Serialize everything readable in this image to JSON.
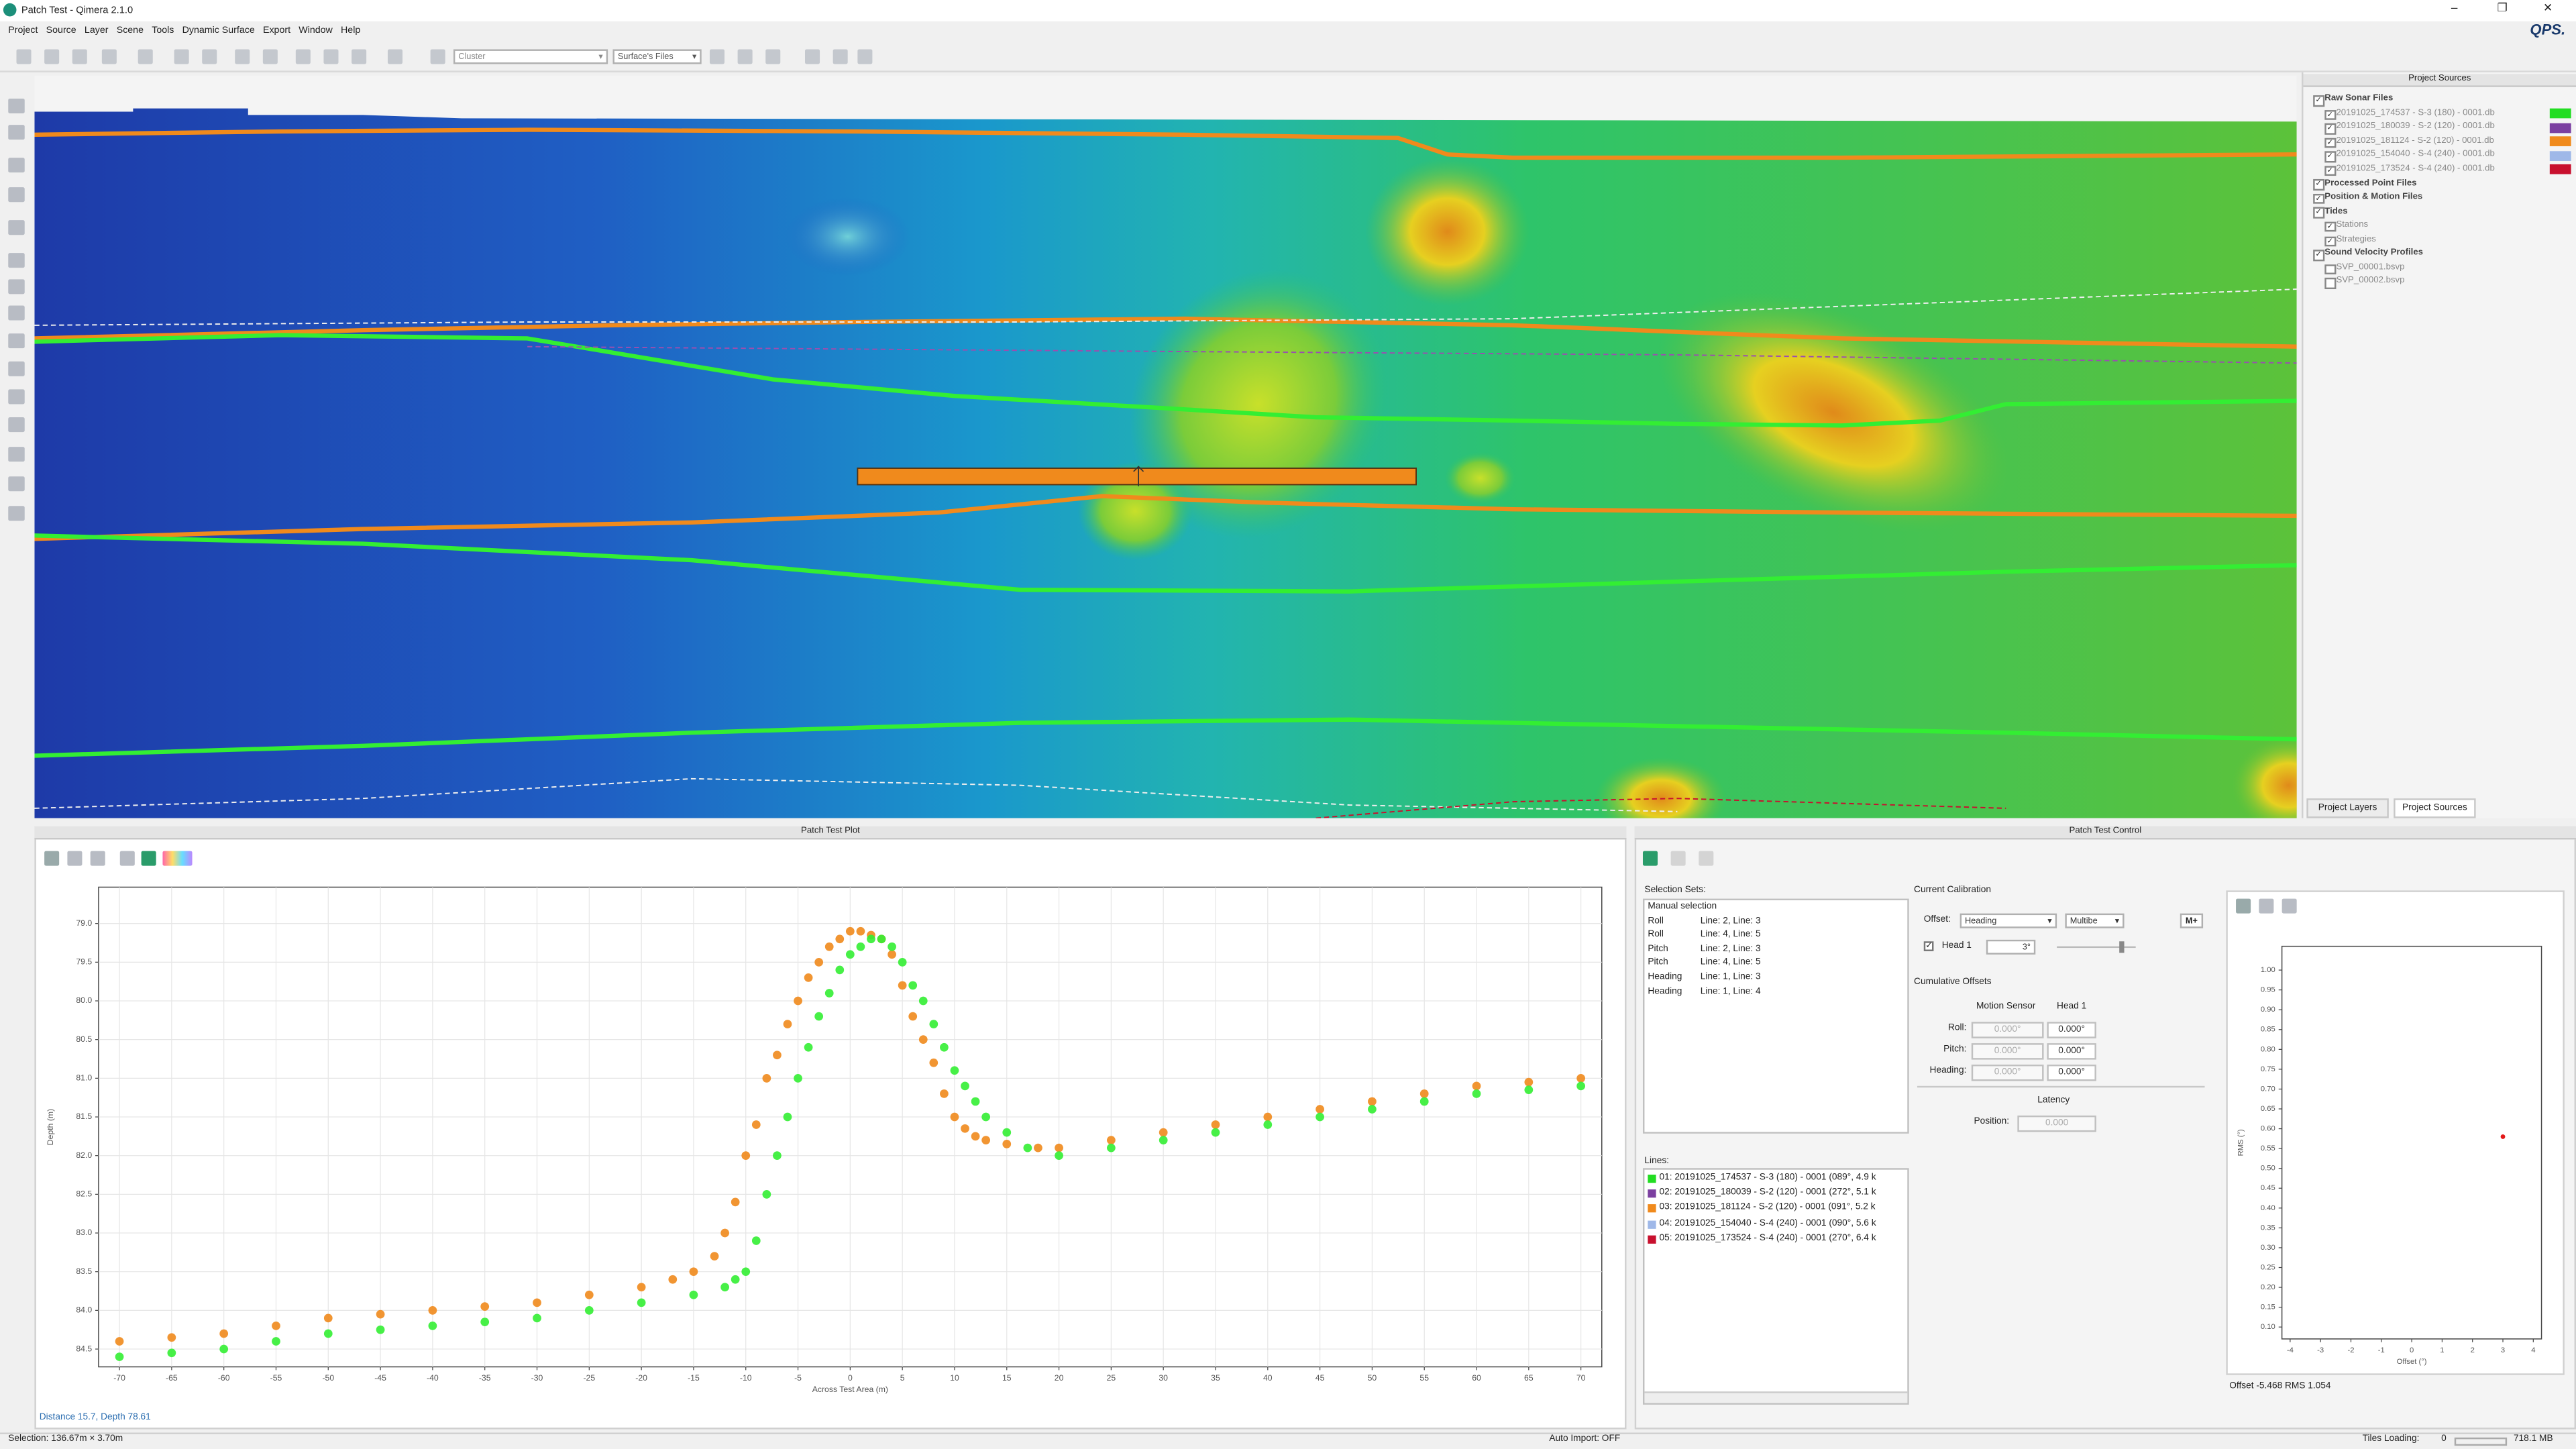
{
  "window": {
    "title": "Patch Test - Qimera 2.1.0",
    "logo": "QPS."
  },
  "menu": [
    "Project",
    "Source",
    "Layer",
    "Scene",
    "Tools",
    "Dynamic Surface",
    "Export",
    "Window",
    "Help"
  ],
  "toolbar": {
    "cluster": "Cluster",
    "surface_files": "Surface's Files"
  },
  "project_sources": {
    "title": "Project Sources",
    "tree": [
      {
        "label": "Raw Sonar Files",
        "children": [
          {
            "label": "20191025_174537 - S-3 (180) - 0001.db",
            "color": "#22dd22"
          },
          {
            "label": "20191025_180039 - S-2 (120) - 0001.db",
            "color": "#7b3fa0"
          },
          {
            "label": "20191025_181124 - S-2 (120) - 0001.db",
            "color": "#f08a1c"
          },
          {
            "label": "20191025_154040 - S-4 (240) - 0001.db",
            "color": "#9fb8e8"
          },
          {
            "label": "20191025_173524 - S-4 (240) - 0001.db",
            "color": "#c8102e"
          }
        ]
      },
      {
        "label": "Processed Point Files"
      },
      {
        "label": "Position & Motion Files"
      },
      {
        "label": "Tides",
        "children": [
          {
            "label": "Stations"
          },
          {
            "label": "Strategies"
          }
        ]
      },
      {
        "label": "Sound Velocity Profiles",
        "children": [
          {
            "label": "SVP_00001.bsvp"
          },
          {
            "label": "SVP_00002.bsvp"
          }
        ]
      }
    ]
  },
  "tabs": [
    "Project Layers",
    "Project Sources"
  ],
  "patch_test_plot": {
    "title": "Patch Test Plot",
    "type": "scatter",
    "x_label": "Across Test Area (m)",
    "y_label": "Depth (m)",
    "xlim": [
      -72,
      72
    ],
    "ylim": [
      78.53,
      84.73
    ],
    "y_inverted": true,
    "grid": true,
    "xticks": [
      -70,
      -65,
      -60,
      -55,
      -50,
      -45,
      -40,
      -35,
      -30,
      -25,
      -20,
      -15,
      -10,
      -5,
      0,
      5,
      10,
      15,
      20,
      25,
      30,
      35,
      40,
      45,
      50,
      55,
      60,
      65,
      70
    ],
    "yticks": [
      {
        "value": 79,
        "label": "79.0"
      },
      {
        "value": 79.5,
        "label": "79.5"
      },
      {
        "value": 80,
        "label": "80.0"
      },
      {
        "value": 80.5,
        "label": "80.5"
      },
      {
        "value": 81,
        "label": "81.0"
      },
      {
        "value": 81.5,
        "label": "81.5"
      },
      {
        "value": 82,
        "label": "82.0"
      },
      {
        "value": 82.5,
        "label": "82.5"
      },
      {
        "value": 83,
        "label": "83.0"
      },
      {
        "value": 83.5,
        "label": "83.5"
      },
      {
        "value": 84,
        "label": "84.0"
      },
      {
        "value": 84.5,
        "label": "84.5"
      }
    ],
    "series": [
      {
        "color": "#f08a1c",
        "x": [
          -70,
          -65,
          -60,
          -55,
          -50,
          -45,
          -40,
          -35,
          -30,
          -25,
          -20,
          -17,
          -15,
          -13,
          -12,
          -11,
          -10,
          -9,
          -8,
          -7,
          -6,
          -5,
          -4,
          -3,
          -2,
          -1,
          0,
          1,
          2,
          3,
          4,
          5,
          6,
          7,
          8,
          9,
          10,
          11,
          12,
          13,
          15,
          18,
          20,
          25,
          30,
          35,
          40,
          45,
          50,
          55,
          60,
          65,
          70
        ],
        "values": [
          84.4,
          84.35,
          84.3,
          84.2,
          84.1,
          84.05,
          84.0,
          83.95,
          83.9,
          83.8,
          83.7,
          83.6,
          83.5,
          83.3,
          83.0,
          82.6,
          82.0,
          81.6,
          81.0,
          80.7,
          80.3,
          80.0,
          79.7,
          79.5,
          79.3,
          79.2,
          79.1,
          79.1,
          79.15,
          79.2,
          79.4,
          79.8,
          80.2,
          80.5,
          80.8,
          81.2,
          81.5,
          81.65,
          81.75,
          81.8,
          81.85,
          81.9,
          81.9,
          81.8,
          81.7,
          81.6,
          81.5,
          81.4,
          81.3,
          81.2,
          81.1,
          81.05,
          81.0
        ]
      },
      {
        "color": "#33ee33",
        "x": [
          -70,
          -65,
          -60,
          -55,
          -50,
          -45,
          -40,
          -35,
          -30,
          -25,
          -20,
          -15,
          -12,
          -11,
          -10,
          -9,
          -8,
          -7,
          -6,
          -5,
          -4,
          -3,
          -2,
          -1,
          0,
          1,
          2,
          3,
          4,
          5,
          6,
          7,
          8,
          9,
          10,
          11,
          12,
          13,
          15,
          17,
          20,
          25,
          30,
          35,
          40,
          45,
          50,
          55,
          60,
          65,
          70
        ],
        "values": [
          84.6,
          84.55,
          84.5,
          84.4,
          84.3,
          84.25,
          84.2,
          84.15,
          84.1,
          84.0,
          83.9,
          83.8,
          83.7,
          83.6,
          83.5,
          83.1,
          82.5,
          82.0,
          81.5,
          81.0,
          80.6,
          80.2,
          79.9,
          79.6,
          79.4,
          79.3,
          79.2,
          79.2,
          79.3,
          79.5,
          79.8,
          80.0,
          80.3,
          80.6,
          80.9,
          81.1,
          81.3,
          81.5,
          81.7,
          81.9,
          82.0,
          81.9,
          81.8,
          81.7,
          81.6,
          81.5,
          81.4,
          81.3,
          81.2,
          81.15,
          81.1
        ]
      }
    ]
  },
  "plot_status": "Distance 15.7, Depth 78.61",
  "patch_test_control": {
    "title": "Patch Test Control",
    "selection_sets_label": "Selection Sets:",
    "selection_sets_header": "Manual selection",
    "selection_sets": [
      [
        "Roll",
        "Line: 2, Line: 3"
      ],
      [
        "Roll",
        "Line: 4, Line: 5"
      ],
      [
        "Pitch",
        "Line: 2, Line: 3"
      ],
      [
        "Pitch",
        "Line: 4, Line: 5"
      ],
      [
        "Heading",
        "Line: 1, Line: 3"
      ],
      [
        "Heading",
        "Line: 1, Line: 4"
      ]
    ],
    "lines_label": "Lines:",
    "lines": [
      {
        "label": "01: 20191025_174537 - S-3 (180) - 0001 (089°, 4.9 k",
        "color": "#22dd22"
      },
      {
        "label": "02: 20191025_180039 - S-2 (120) - 0001 (272°, 5.1 k",
        "color": "#7b3fa0"
      },
      {
        "label": "03: 20191025_181124 - S-2 (120) - 0001 (091°, 5.2 k",
        "color": "#f08a1c"
      },
      {
        "label": "04: 20191025_154040 - S-4 (240) - 0001 (090°, 5.6 k",
        "color": "#9fb8e8"
      },
      {
        "label": "05: 20191025_173524 - S-4 (240) - 0001 (270°, 6.4 k",
        "color": "#c8102e"
      }
    ],
    "calibration": {
      "title": "Current Calibration",
      "offset_label": "Offset:",
      "offset": "Heading",
      "sensor": "Multibe",
      "mplus": "M+",
      "head": "Head 1",
      "head_value": "3°"
    },
    "cumulative": {
      "title": "Cumulative Offsets",
      "columns": [
        "Motion Sensor",
        "Head 1"
      ],
      "rows": [
        [
          "Roll:",
          "0.000°",
          "0.000°"
        ],
        [
          "Pitch:",
          "0.000°",
          "0.000°"
        ],
        [
          "Heading:",
          "0.000°",
          "0.000°"
        ]
      ],
      "latency": "Latency",
      "position_label": "Position:",
      "position": "0.000"
    },
    "rms_plot": {
      "type": "scatter",
      "x_label": "Offset (°)",
      "y_label": "RMS (°)",
      "xlim": [
        -4.27,
        4.27
      ],
      "ylim": [
        0.07,
        1.06
      ],
      "grid": false,
      "xticks": [
        -4,
        -3,
        -2,
        -1,
        0,
        1,
        2,
        3,
        4
      ],
      "yticks": [
        {
          "value": 0.1,
          "label": "0.10"
        },
        {
          "value": 0.15,
          "label": "0.15"
        },
        {
          "value": 0.2,
          "label": "0.20"
        },
        {
          "value": 0.25,
          "label": "0.25"
        },
        {
          "value": 0.3,
          "label": "0.30"
        },
        {
          "value": 0.35,
          "label": "0.35"
        },
        {
          "value": 0.4,
          "label": "0.40"
        },
        {
          "value": 0.45,
          "label": "0.45"
        },
        {
          "value": 0.5,
          "label": "0.50"
        },
        {
          "value": 0.55,
          "label": "0.55"
        },
        {
          "value": 0.6,
          "label": "0.60"
        },
        {
          "value": 0.65,
          "label": "0.65"
        },
        {
          "value": 0.7,
          "label": "0.70"
        },
        {
          "value": 0.75,
          "label": "0.75"
        },
        {
          "value": 0.8,
          "label": "0.80"
        },
        {
          "value": 0.85,
          "label": "0.85"
        },
        {
          "value": 0.9,
          "label": "0.90"
        },
        {
          "value": 0.95,
          "label": "0.95"
        },
        {
          "value": 1.0,
          "label": "1.00"
        }
      ],
      "series": [
        {
          "color": "#e00000",
          "x": [
            3
          ],
          "values": [
            0.58
          ]
        }
      ]
    },
    "rms_status": "Offset -5.468  RMS 1.054"
  },
  "status_bar": {
    "selection": "Selection: 136.67m × 3.70m",
    "auto_import": "Auto Import: OFF",
    "tiles_loading": "Tiles Loading:",
    "tiles_count": "0",
    "memory": "718.1 MB"
  }
}
